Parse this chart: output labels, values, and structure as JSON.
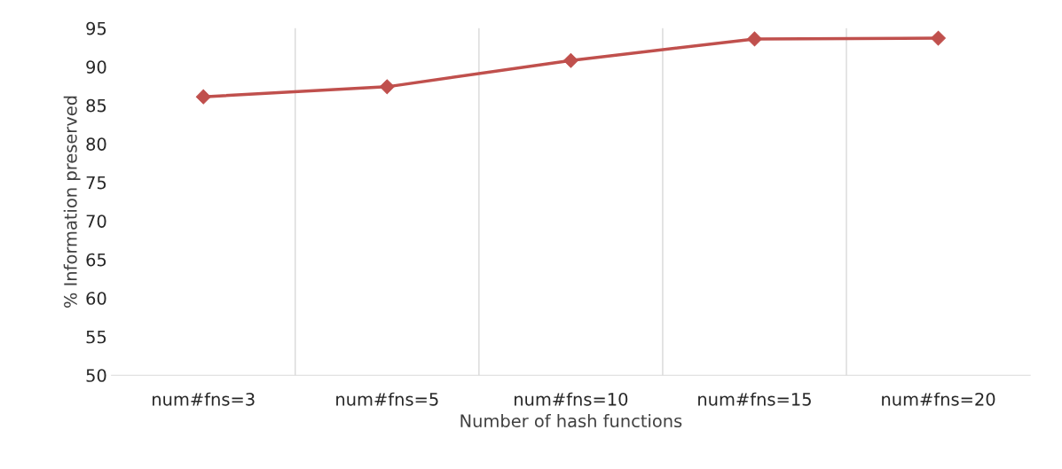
{
  "chart_data": {
    "type": "line",
    "xlabel": "Number of hash functions",
    "ylabel": "% Information preserved",
    "categories": [
      "num#fns=3",
      "num#fns=5",
      "num#fns=10",
      "num#fns=15",
      "num#fns=20"
    ],
    "series": [
      {
        "color": "#c0504d",
        "values": [
          86.1,
          87.4,
          90.8,
          93.6,
          93.7
        ]
      }
    ],
    "ylim": [
      50,
      95
    ],
    "yticks": [
      50,
      55,
      60,
      65,
      70,
      75,
      80,
      85,
      90,
      95
    ],
    "grid": "x",
    "marker": "diamond",
    "line_style": "solid",
    "legend": false
  }
}
